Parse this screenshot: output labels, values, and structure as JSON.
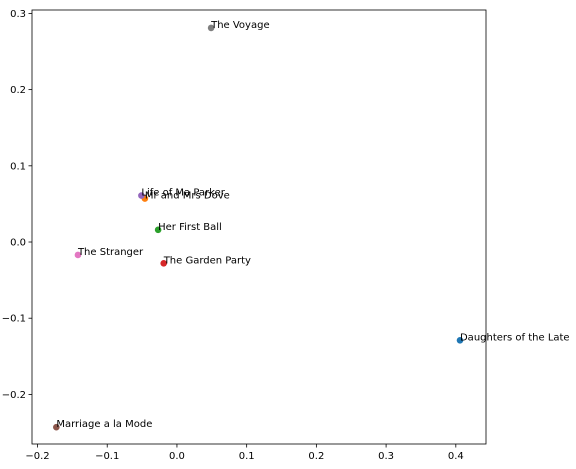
{
  "chart_data": {
    "type": "scatter",
    "title": "",
    "xlabel": "",
    "ylabel": "",
    "xlim": [
      -0.2079,
      0.4433
    ],
    "ylim": [
      -0.2651,
      0.3045
    ],
    "grid": false,
    "x_ticks": [
      "−0.2",
      "−0.1",
      "0.0",
      "0.1",
      "0.2",
      "0.3",
      "0.4"
    ],
    "x_tick_values": [
      -0.2,
      -0.1,
      0.0,
      0.1,
      0.2,
      0.3,
      0.4
    ],
    "y_ticks": [
      "−0.2",
      "−0.1",
      "0.0",
      "0.1",
      "0.2",
      "0.3"
    ],
    "y_tick_values": [
      -0.2,
      -0.1,
      0.0,
      0.1,
      0.2,
      0.3
    ],
    "points": [
      {
        "label": "Daughters of the Late",
        "x": 0.406,
        "y": -0.129,
        "color": "#1f77b4"
      },
      {
        "label": "Mr and Mrs Dove",
        "x": -0.046,
        "y": 0.057,
        "color": "#ff7f0e"
      },
      {
        "label": "Her First Ball",
        "x": -0.027,
        "y": 0.016,
        "color": "#2ca02c"
      },
      {
        "label": "The Garden Party",
        "x": -0.019,
        "y": -0.028,
        "color": "#d62728"
      },
      {
        "label": "Life of Ma Parker",
        "x": -0.051,
        "y": 0.061,
        "color": "#9467bd"
      },
      {
        "label": "Marriage a la Mode",
        "x": -0.173,
        "y": -0.243,
        "color": "#8c564b"
      },
      {
        "label": "The Stranger",
        "x": -0.142,
        "y": -0.017,
        "color": "#e377c2"
      },
      {
        "label": "The Voyage",
        "x": 0.049,
        "y": 0.281,
        "color": "#7f7f7f"
      }
    ]
  }
}
